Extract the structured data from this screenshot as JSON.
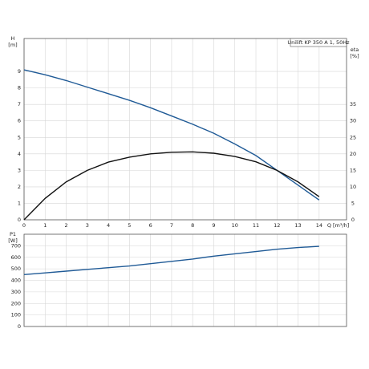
{
  "chart_data": [
    {
      "type": "line",
      "title": "Unilift KP 350 A 1, 50Hz",
      "y_label": "H",
      "y_unit": "[m]",
      "y2_label": "eta",
      "y2_unit": "[%]",
      "x_label": "Q [m³/h]",
      "x": [
        0,
        1,
        2,
        3,
        4,
        5,
        6,
        7,
        8,
        9,
        10,
        11,
        12,
        13,
        14
      ],
      "series": [
        {
          "name": "H",
          "color": "#1f5a96",
          "values": [
            9.1,
            8.8,
            8.45,
            8.05,
            7.65,
            7.25,
            6.8,
            6.3,
            5.8,
            5.25,
            4.6,
            3.9,
            3.0,
            2.1,
            1.2
          ]
        },
        {
          "name": "eta",
          "color": "#111111",
          "axis": "y2",
          "values": [
            0,
            6.5,
            11.5,
            15,
            17.5,
            19,
            20,
            20.5,
            20.6,
            20.2,
            19.2,
            17.6,
            15,
            11.5,
            7
          ]
        }
      ],
      "xlim": [
        0,
        15.3
      ],
      "xticks": [
        0,
        1,
        2,
        3,
        4,
        5,
        6,
        7,
        8,
        9,
        10,
        11,
        12,
        13,
        14
      ],
      "ylim": [
        0,
        11
      ],
      "yticks": [
        0,
        1,
        2,
        3,
        4,
        5,
        6,
        7,
        8,
        9
      ],
      "y2lim": [
        0,
        55
      ],
      "y2ticks": [
        0,
        5,
        10,
        15,
        20,
        25,
        30,
        35
      ],
      "grid": true
    },
    {
      "type": "line",
      "y_label": "P1",
      "y_unit": "[W]",
      "x": [
        0,
        1,
        2,
        3,
        4,
        5,
        6,
        7,
        8,
        9,
        10,
        11,
        12,
        13,
        14
      ],
      "series": [
        {
          "name": "P1",
          "color": "#1f5a96",
          "values": [
            450,
            465,
            480,
            495,
            510,
            525,
            545,
            565,
            585,
            610,
            630,
            650,
            670,
            685,
            695
          ]
        }
      ],
      "xlim": [
        0,
        15.3
      ],
      "xticks": [
        0,
        1,
        2,
        3,
        4,
        5,
        6,
        7,
        8,
        9,
        10,
        11,
        12,
        13,
        14
      ],
      "ylim": [
        0,
        800
      ],
      "yticks": [
        0,
        100,
        200,
        300,
        400,
        500,
        600,
        700
      ],
      "grid": true
    }
  ]
}
